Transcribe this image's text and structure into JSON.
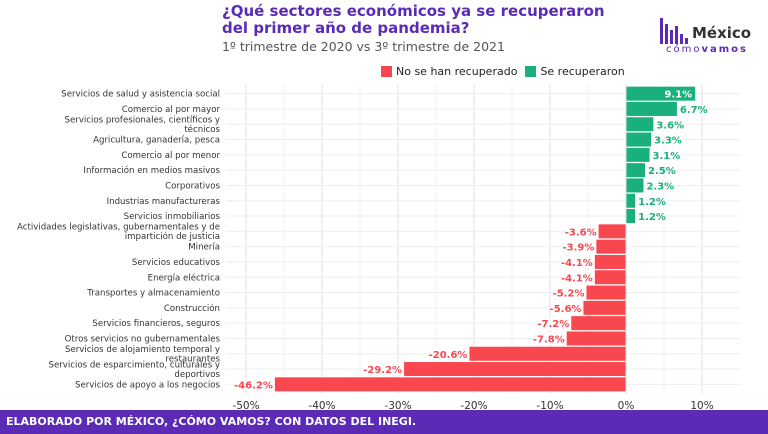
{
  "header": {
    "title_line1": "¿Qué sectores económicos ya se recuperaron",
    "title_line2": "del primer año de pandemia?",
    "subtitle": "1º trimestre de 2020 vs 3º trimestre de 2021"
  },
  "logo": {
    "main": "México",
    "sub_light": "cómo",
    "sub_bold": "vamos"
  },
  "legend": {
    "not_recovered": "No se han recuperado",
    "recovered": "Se recuperaron"
  },
  "colors": {
    "not_recovered": "#f8474f",
    "recovered": "#19b07b",
    "brand": "#5b2bb5"
  },
  "footer": {
    "text": "ELABORADO POR MÉXICO, ¿CÓMO VAMOS? CON DATOS DEL INEGI."
  },
  "chart_data": {
    "type": "bar",
    "orientation": "horizontal",
    "title": "¿Qué sectores económicos ya se recuperaron del primer año de pandemia?",
    "subtitle": "1º trimestre de 2020 vs 3º trimestre de 2021",
    "xlim": [
      -50,
      10
    ],
    "xticks": [
      -50,
      -40,
      -30,
      -20,
      -10,
      0,
      10
    ],
    "xtick_labels": [
      "-50%",
      "-40%",
      "-30%",
      "-20%",
      "-10%",
      "0%",
      "10%"
    ],
    "grid": true,
    "legend_position": "top-right",
    "categories": [
      "Servicios de salud y asistencia social",
      "Comercio al por mayor",
      "Servicios profesionales, científicos y técnicos",
      "Agricultura, ganadería, pesca",
      "Comercio al por menor",
      "Información en medios masivos",
      "Corporativos",
      "Industrias manufactureras",
      "Servicios inmobiliarios",
      "Actividades legislativas, gubernamentales y de impartición de justicia",
      "Minería",
      "Servicios educativos",
      "Energía eléctrica",
      "Transportes y almacenamiento",
      "Construcción",
      "Servicios financieros, seguros",
      "Otros servicios no gubernamentales",
      "Servicios de alojamiento temporal y restaurantes",
      "Servicios de esparcimiento, culturales y deportivos",
      "Servicios de apoyo a los negocios"
    ],
    "values": [
      9.1,
      6.7,
      3.6,
      3.3,
      3.1,
      2.5,
      2.3,
      1.2,
      1.2,
      -3.6,
      -3.9,
      -4.1,
      -4.1,
      -5.2,
      -5.6,
      -7.2,
      -7.8,
      -20.6,
      -29.2,
      -46.2
    ],
    "data_labels": [
      "9.1%",
      "6.7%",
      "3.6%",
      "3.3%",
      "3.1%",
      "2.5%",
      "2.3%",
      "1.2%",
      "1.2%",
      "-3.6%",
      "-3.9%",
      "-4.1%",
      "-4.1%",
      "-5.2%",
      "-5.6%",
      "-7.2%",
      "-7.8%",
      "-20.6%",
      "-29.2%",
      "-46.2%"
    ],
    "series": [
      {
        "name": "No se han recuperado",
        "color": "#f8474f"
      },
      {
        "name": "Se recuperaron",
        "color": "#19b07b"
      }
    ]
  }
}
